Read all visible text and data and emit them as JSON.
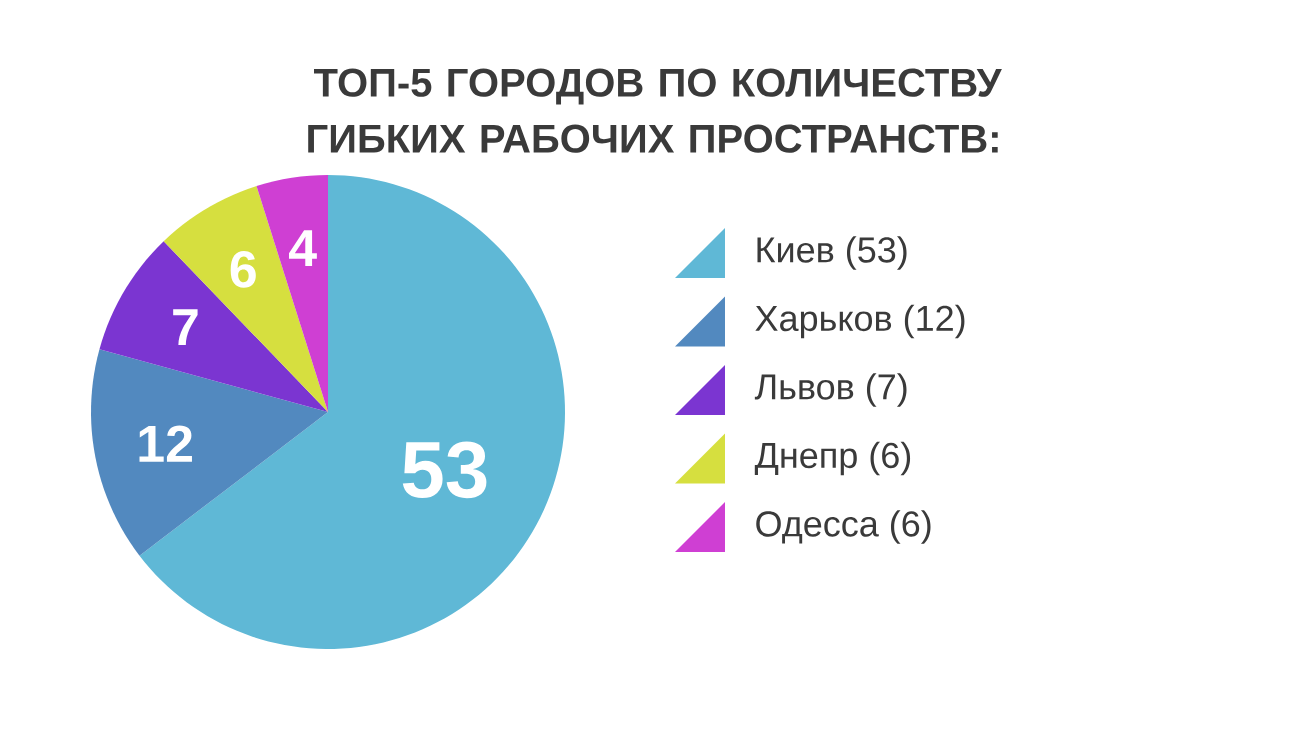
{
  "chart_data": {
    "type": "pie",
    "title": "ТОП-5 ГОРОДОВ ПО КОЛИЧЕСТВУ ГИБКИХ РАБОЧИХ ПРОСТРАНСТВ:",
    "categories": [
      "Киев (53)",
      "Харьков (12)",
      "Львов (7)",
      "Днепр (6)",
      "Одесса (6)"
    ],
    "values": [
      53,
      12,
      7,
      6,
      4
    ],
    "colors": [
      "#5fb8d6",
      "#5289bf",
      "#7b35d1",
      "#d6df3f",
      "#cf3fd3"
    ],
    "data_labels": true,
    "legend": "right"
  }
}
